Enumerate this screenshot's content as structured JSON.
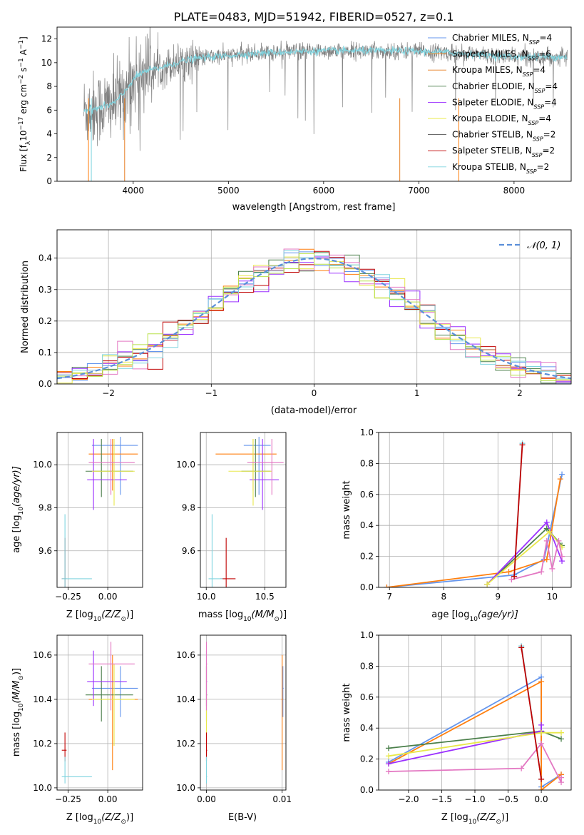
{
  "title": "PLATE=0483, MJD=51942, FIBERID=0527, z=0.1",
  "colors": {
    "chabrier_miles": "#6495ED",
    "salpeter_miles": "#FF7F0E",
    "kroupa_miles": "#E67E22",
    "chabrier_elodie": "#4A7F4A",
    "salpeter_elodie": "#9B30FF",
    "kroupa_elodie": "#E8E84A",
    "chabrier_stelib": "#555555",
    "salpeter_stelib": "#C00000",
    "kroupa_stelib": "#7FD4DF",
    "pink": "#E377C2",
    "yellowgreen": "#B8E04A",
    "data_grey": "#808080",
    "normal_dashed": "#5B8FD9",
    "grid": "#B0B0B0"
  },
  "chart_data": [
    {
      "type": "line",
      "panel": "spectrum",
      "title": "PLATE=0483, MJD=51942, FIBERID=0527, z=0.1",
      "xlabel": "wavelength [Angstrom, rest frame]",
      "ylabel": "Flux [f",
      "ylabel_parts": [
        "Flux [f",
        "λ",
        "10",
        "−17",
        " erg cm",
        "−2",
        " s",
        "−1",
        " A",
        "−1",
        "]"
      ],
      "xlim": [
        3200,
        8600
      ],
      "ylim": [
        0,
        13
      ],
      "xticks": [
        4000,
        5000,
        6000,
        7000,
        8000
      ],
      "yticks": [
        0,
        2,
        4,
        6,
        8,
        10,
        12
      ],
      "grid": false,
      "legend_position": "right",
      "legend": [
        {
          "label": "Chabrier MILES, N",
          "sub": "SSP",
          "suffix": "=4",
          "color_key": "chabrier_miles"
        },
        {
          "label": "Salpeter MILES, N",
          "sub": "SSP",
          "suffix": "=6",
          "color_key": "salpeter_miles"
        },
        {
          "label": "Kroupa MILES, N",
          "sub": "SSP",
          "suffix": "=4",
          "color_key": "kroupa_miles"
        },
        {
          "label": "Chabrier ELODIE, N",
          "sub": "SSP",
          "suffix": "=4",
          "color_key": "chabrier_elodie"
        },
        {
          "label": "Salpeter ELODIE, N",
          "sub": "SSP",
          "suffix": "=4",
          "color_key": "salpeter_elodie"
        },
        {
          "label": "Kroupa ELODIE, N",
          "sub": "SSP",
          "suffix": "=4",
          "color_key": "kroupa_elodie"
        },
        {
          "label": "Chabrier STELIB, N",
          "sub": "SSP",
          "suffix": "=2",
          "color_key": "chabrier_stelib"
        },
        {
          "label": "Salpeter STELIB, N",
          "sub": "SSP",
          "suffix": "=2",
          "color_key": "salpeter_stelib"
        },
        {
          "label": "Kroupa STELIB, N",
          "sub": "SSP",
          "suffix": "=2",
          "color_key": "kroupa_stelib"
        }
      ],
      "continuum_x": [
        3500,
        3600,
        3700,
        3800,
        3900,
        4000,
        4100,
        4200,
        4300,
        4500,
        4700,
        5000,
        5300,
        5600,
        6000,
        6400,
        6800,
        7200,
        7600,
        8000,
        8400
      ],
      "continuum_y": [
        6.0,
        6.1,
        6.3,
        6.6,
        7.4,
        8.6,
        9.2,
        9.4,
        9.6,
        10.1,
        10.4,
        10.6,
        10.8,
        10.9,
        11.0,
        11.0,
        11.0,
        10.9,
        10.7,
        10.5,
        10.5
      ]
    },
    {
      "type": "line",
      "panel": "residual_histogram",
      "xlabel": "(data-model)/error",
      "ylabel": "Normed distribution",
      "xlim": [
        -2.5,
        2.5
      ],
      "ylim": [
        0,
        0.49
      ],
      "xticks": [
        -2,
        -1,
        0,
        1,
        2
      ],
      "xtick_labels": [
        "−2",
        "−1",
        "0",
        "1",
        "2"
      ],
      "yticks": [
        0.0,
        0.1,
        0.2,
        0.3,
        0.4
      ],
      "ytick_labels": [
        "0.0",
        "0.1",
        "0.2",
        "0.3",
        "0.4"
      ],
      "grid": true,
      "legend_position": "top-right",
      "legend_label": "𝒩(0, 1)"
    },
    {
      "type": "scatter",
      "panel": "age_vs_Z",
      "xlabel": "Z [log",
      "xlabel_parts": [
        "Z [log",
        "10",
        "(Z/Z",
        "⊙",
        ")]"
      ],
      "ylabel_parts": [
        "age  [log",
        "10",
        "(age/yr)]"
      ],
      "xlim": [
        -0.32,
        0.22
      ],
      "ylim": [
        9.43,
        10.15
      ],
      "xticks": [
        -0.25,
        0.0
      ],
      "xtick_labels": [
        "−0.25",
        "0.00"
      ],
      "yticks": [
        9.6,
        9.8,
        10.0
      ],
      "ytick_labels": [
        "9.6",
        "9.8",
        "10.0"
      ],
      "grid": true
    },
    {
      "type": "scatter",
      "panel": "age_vs_mass",
      "xlabel_parts": [
        "mass [log",
        "10",
        "(M/M",
        "⊙",
        ")]"
      ],
      "xlim": [
        9.95,
        10.68
      ],
      "ylim": [
        9.43,
        10.15
      ],
      "xticks": [
        10.0,
        10.5
      ],
      "xtick_labels": [
        "10.0",
        "10.5"
      ],
      "yticks": [
        9.6,
        9.8,
        10.0
      ],
      "ytick_labels": [
        "9.6",
        "9.8",
        "10.0"
      ],
      "grid": true
    },
    {
      "type": "line",
      "panel": "mass_weight_vs_age",
      "xlabel_parts": [
        "age  [log",
        "10",
        "(age/yr)]"
      ],
      "ylabel": "mass weight",
      "xlim": [
        6.8,
        10.35
      ],
      "ylim": [
        0,
        1.0
      ],
      "xticks": [
        7,
        8,
        9,
        10
      ],
      "xtick_labels": [
        "7",
        "8",
        "9",
        "10"
      ],
      "yticks": [
        0.0,
        0.2,
        0.4,
        0.6,
        0.8,
        1.0
      ],
      "ytick_labels": [
        "0.0",
        "0.2",
        "0.4",
        "0.6",
        "0.8",
        "1.0"
      ],
      "grid": true
    },
    {
      "type": "scatter",
      "panel": "mass_vs_Z",
      "xlabel_parts": [
        "Z [log",
        "10",
        "(Z/Z",
        "⊙",
        ")]"
      ],
      "ylabel_parts": [
        "mass [log",
        "10",
        "(M/M",
        "⊙",
        ")]"
      ],
      "xlim": [
        -0.32,
        0.22
      ],
      "ylim": [
        9.99,
        10.69
      ],
      "xticks": [
        -0.25,
        0.0
      ],
      "xtick_labels": [
        "−0.25",
        "0.00"
      ],
      "yticks": [
        10.0,
        10.2,
        10.4,
        10.6
      ],
      "ytick_labels": [
        "10.0",
        "10.2",
        "10.4",
        "10.6"
      ],
      "grid": true
    },
    {
      "type": "scatter",
      "panel": "mass_vs_EBV",
      "xlabel": "E(B-V)",
      "xlim": [
        -0.0008,
        0.0105
      ],
      "ylim": [
        9.99,
        10.69
      ],
      "xticks": [
        0.0,
        0.01
      ],
      "xtick_labels": [
        "0.00",
        "0.01"
      ],
      "yticks": [
        10.0,
        10.2,
        10.4,
        10.6
      ],
      "ytick_labels": [
        "10.0",
        "10.2",
        "10.4",
        "10.6"
      ],
      "grid": true
    },
    {
      "type": "line",
      "panel": "mass_weight_vs_Z",
      "xlabel_parts": [
        "Z [log",
        "10",
        "(Z/Z",
        "⊙",
        ")]"
      ],
      "ylabel": "mass weight",
      "xlim": [
        -2.45,
        0.45
      ],
      "ylim": [
        0,
        1.0
      ],
      "xticks": [
        -2.0,
        -1.5,
        -1.0,
        -0.5,
        0.0
      ],
      "xtick_labels": [
        "−2.0",
        "−1.5",
        "−1.0",
        "−0.5",
        "0.0"
      ],
      "yticks": [
        0.0,
        0.2,
        0.4,
        0.6,
        0.8,
        1.0
      ],
      "ytick_labels": [
        "0.0",
        "0.2",
        "0.4",
        "0.6",
        "0.8",
        "1.0"
      ],
      "grid": true
    }
  ],
  "fits": [
    {
      "color_key": "chabrier_miles",
      "Z": 0.08,
      "Zlo": -0.1,
      "Zhi": 0.19,
      "age": 10.09,
      "agelo": 9.86,
      "agehi": 10.13,
      "mass": 10.45,
      "masslo": 10.32,
      "masshi": 10.55,
      "ebv": 0.0101,
      "ebvlo": 0.01,
      "ebvhi": 0.0102
    },
    {
      "color_key": "salpeter_miles",
      "Z": 0.03,
      "Zlo": -0.12,
      "Zhi": 0.19,
      "age": 10.05,
      "agelo": 9.88,
      "agehi": 10.12,
      "mass": 10.4,
      "masslo": 10.08,
      "masshi": 10.6,
      "ebv": 0.01,
      "ebvlo": 0.0099,
      "ebvhi": 0.0101
    },
    {
      "color_key": "chabrier_elodie",
      "Z": -0.04,
      "Zlo": -0.14,
      "Zhi": 0.16,
      "age": 9.97,
      "agelo": 9.85,
      "agehi": 10.12,
      "mass": 10.42,
      "masslo": 10.3,
      "masshi": 10.55,
      "ebv": 0.0,
      "ebvlo": 0.0,
      "ebvhi": 0.0001
    },
    {
      "color_key": "salpeter_elodie",
      "Z": -0.09,
      "Zlo": -0.13,
      "Zhi": 0.12,
      "age": 9.93,
      "agelo": 9.79,
      "agehi": 10.12,
      "mass": 10.48,
      "masslo": 10.37,
      "masshi": 10.62,
      "ebv": 0.0,
      "ebvlo": 0.0,
      "ebvhi": 0.0001
    },
    {
      "color_key": "kroupa_elodie",
      "Z": 0.04,
      "Zlo": -0.1,
      "Zhi": 0.17,
      "age": 9.97,
      "agelo": 9.81,
      "agehi": 10.12,
      "mass": 10.4,
      "masslo": 10.19,
      "masshi": 10.56,
      "ebv": 0.0,
      "ebvlo": 0.0,
      "ebvhi": 0.0001
    },
    {
      "color_key": "pink",
      "Z": 0.02,
      "Zlo": -0.12,
      "Zhi": 0.17,
      "age": 10.01,
      "agelo": 9.86,
      "agehi": 10.12,
      "mass": 10.56,
      "masslo": 10.35,
      "masshi": 10.66,
      "ebv": 0.0,
      "ebvlo": 0.0,
      "ebvhi": 0.0001
    },
    {
      "color_key": "salpeter_stelib",
      "Z": -0.27,
      "Zlo": -0.29,
      "Zhi": -0.26,
      "age": 9.47,
      "agelo": 9.43,
      "agehi": 9.66,
      "mass": 10.17,
      "masslo": 10.12,
      "masshi": 10.25,
      "ebv": 0.0,
      "ebvlo": 0.0,
      "ebvhi": 0.0001
    },
    {
      "color_key": "kroupa_stelib",
      "Z": -0.27,
      "Zlo": -0.29,
      "Zhi": -0.1,
      "age": 9.47,
      "agelo": 9.43,
      "agehi": 9.77,
      "mass": 10.05,
      "masslo": 10.02,
      "masshi": 10.14,
      "ebv": 0.0,
      "ebvlo": 0.0,
      "ebvhi": 0.0001
    }
  ],
  "weight_vs_age": [
    {
      "color_key": "chabrier_miles",
      "age": [
        6.95,
        9.3,
        9.85,
        10.18
      ],
      "w": [
        0.0,
        0.08,
        0.18,
        0.73
      ]
    },
    {
      "color_key": "salpeter_miles",
      "age": [
        6.95,
        9.2,
        9.9,
        10.15
      ],
      "w": [
        0.0,
        0.1,
        0.18,
        0.7
      ]
    },
    {
      "color_key": "chabrier_elodie",
      "age": [
        8.8,
        9.9,
        10.18
      ],
      "w": [
        0.02,
        0.38,
        0.27
      ]
    },
    {
      "color_key": "salpeter_elodie",
      "age": [
        8.8,
        9.9,
        10.18
      ],
      "w": [
        0.02,
        0.42,
        0.17
      ]
    },
    {
      "color_key": "kroupa_elodie",
      "age": [
        8.8,
        9.95,
        10.18
      ],
      "w": [
        0.02,
        0.36,
        0.26
      ]
    },
    {
      "color_key": "pink",
      "age": [
        9.25,
        9.8,
        9.9,
        10.0,
        10.12,
        10.18
      ],
      "w": [
        0.05,
        0.1,
        0.3,
        0.12,
        0.3,
        0.2
      ]
    },
    {
      "color_key": "kroupa_stelib",
      "age": [
        9.3,
        9.45
      ],
      "w": [
        0.07,
        0.93
      ]
    },
    {
      "color_key": "salpeter_stelib",
      "age": [
        9.3,
        9.45
      ],
      "w": [
        0.07,
        0.92
      ]
    }
  ],
  "weight_vs_Z": [
    {
      "color_key": "chabrier_miles",
      "Z": [
        -2.3,
        0.0,
        0.0,
        0.3
      ],
      "w": [
        0.18,
        0.73,
        0.02,
        0.1
      ]
    },
    {
      "color_key": "salpeter_miles",
      "Z": [
        -2.3,
        0.0,
        0.0,
        0.3
      ],
      "w": [
        0.17,
        0.7,
        0.0,
        0.1
      ]
    },
    {
      "color_key": "chabrier_elodie",
      "Z": [
        -2.3,
        0.0,
        0.3
      ],
      "w": [
        0.27,
        0.38,
        0.33
      ]
    },
    {
      "color_key": "salpeter_elodie",
      "Z": [
        -2.3,
        0.0,
        0.0
      ],
      "w": [
        0.17,
        0.38,
        0.42
      ]
    },
    {
      "color_key": "kroupa_elodie",
      "Z": [
        -2.3,
        0.0,
        0.3
      ],
      "w": [
        0.22,
        0.37,
        0.37
      ]
    },
    {
      "color_key": "pink",
      "Z": [
        -2.3,
        -0.3,
        0.0,
        0.3,
        0.3
      ],
      "w": [
        0.12,
        0.14,
        0.3,
        0.05,
        0.08
      ]
    },
    {
      "color_key": "kroupa_stelib",
      "Z": [
        -0.3,
        0.0
      ],
      "w": [
        0.93,
        0.07
      ]
    },
    {
      "color_key": "salpeter_stelib",
      "Z": [
        -0.3,
        0.0
      ],
      "w": [
        0.92,
        0.07
      ]
    }
  ]
}
